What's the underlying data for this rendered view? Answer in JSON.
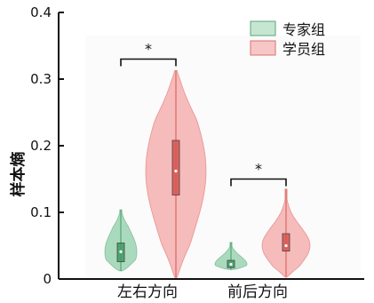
{
  "chart_data": {
    "type": "violin",
    "ylabel": "样本熵",
    "ylim": [
      0,
      0.4
    ],
    "yticks": [
      "0",
      "0.1",
      "0.2",
      "0.3",
      "0.4"
    ],
    "categories": [
      "左右方向",
      "前后方向"
    ],
    "series": [
      {
        "name": "专家组",
        "color": "#8fcfa8",
        "box_color": "#3f9a63",
        "stats": [
          {
            "min": 0.012,
            "q1": 0.026,
            "median": 0.041,
            "q3": 0.054,
            "max": 0.104
          },
          {
            "min": 0.014,
            "q1": 0.017,
            "median": 0.022,
            "q3": 0.028,
            "max": 0.055
          }
        ]
      },
      {
        "name": "学员组",
        "color": "#f4a6a6",
        "box_color": "#d8554f",
        "stats": [
          {
            "min": 0.002,
            "q1": 0.126,
            "median": 0.162,
            "q3": 0.208,
            "max": 0.313
          },
          {
            "min": 0.003,
            "q1": 0.042,
            "median": 0.05,
            "q3": 0.068,
            "max": 0.135
          }
        ]
      }
    ],
    "significance": [
      {
        "category_index": 0,
        "label": "*",
        "y": 0.33
      },
      {
        "category_index": 1,
        "label": "*",
        "y": 0.15
      }
    ],
    "legend_position": "top-right"
  }
}
